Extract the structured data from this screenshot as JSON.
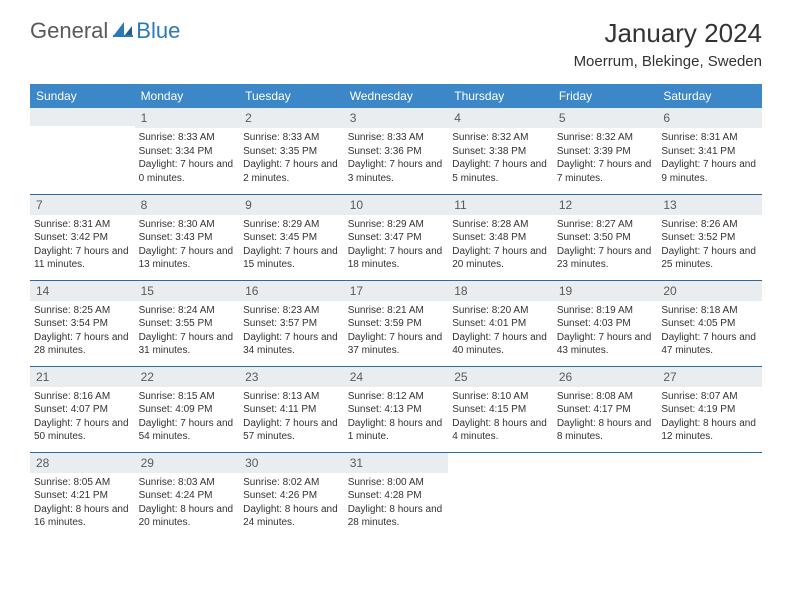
{
  "logo": {
    "general": "General",
    "blue": "Blue"
  },
  "title": "January 2024",
  "location": "Moerrum, Blekinge, Sweden",
  "colors": {
    "header_bg": "#3b87c8",
    "header_fg": "#ffffff",
    "daynum_bg": "#e9edf0",
    "row_border": "#2a6aa5",
    "logo_blue": "#2a7ab8",
    "logo_gray": "#5a5a5a"
  },
  "dayHeaders": [
    "Sunday",
    "Monday",
    "Tuesday",
    "Wednesday",
    "Thursday",
    "Friday",
    "Saturday"
  ],
  "weeks": [
    [
      null,
      {
        "n": "1",
        "sr": "Sunrise: 8:33 AM",
        "ss": "Sunset: 3:34 PM",
        "dl": "Daylight: 7 hours and 0 minutes."
      },
      {
        "n": "2",
        "sr": "Sunrise: 8:33 AM",
        "ss": "Sunset: 3:35 PM",
        "dl": "Daylight: 7 hours and 2 minutes."
      },
      {
        "n": "3",
        "sr": "Sunrise: 8:33 AM",
        "ss": "Sunset: 3:36 PM",
        "dl": "Daylight: 7 hours and 3 minutes."
      },
      {
        "n": "4",
        "sr": "Sunrise: 8:32 AM",
        "ss": "Sunset: 3:38 PM",
        "dl": "Daylight: 7 hours and 5 minutes."
      },
      {
        "n": "5",
        "sr": "Sunrise: 8:32 AM",
        "ss": "Sunset: 3:39 PM",
        "dl": "Daylight: 7 hours and 7 minutes."
      },
      {
        "n": "6",
        "sr": "Sunrise: 8:31 AM",
        "ss": "Sunset: 3:41 PM",
        "dl": "Daylight: 7 hours and 9 minutes."
      }
    ],
    [
      {
        "n": "7",
        "sr": "Sunrise: 8:31 AM",
        "ss": "Sunset: 3:42 PM",
        "dl": "Daylight: 7 hours and 11 minutes."
      },
      {
        "n": "8",
        "sr": "Sunrise: 8:30 AM",
        "ss": "Sunset: 3:43 PM",
        "dl": "Daylight: 7 hours and 13 minutes."
      },
      {
        "n": "9",
        "sr": "Sunrise: 8:29 AM",
        "ss": "Sunset: 3:45 PM",
        "dl": "Daylight: 7 hours and 15 minutes."
      },
      {
        "n": "10",
        "sr": "Sunrise: 8:29 AM",
        "ss": "Sunset: 3:47 PM",
        "dl": "Daylight: 7 hours and 18 minutes."
      },
      {
        "n": "11",
        "sr": "Sunrise: 8:28 AM",
        "ss": "Sunset: 3:48 PM",
        "dl": "Daylight: 7 hours and 20 minutes."
      },
      {
        "n": "12",
        "sr": "Sunrise: 8:27 AM",
        "ss": "Sunset: 3:50 PM",
        "dl": "Daylight: 7 hours and 23 minutes."
      },
      {
        "n": "13",
        "sr": "Sunrise: 8:26 AM",
        "ss": "Sunset: 3:52 PM",
        "dl": "Daylight: 7 hours and 25 minutes."
      }
    ],
    [
      {
        "n": "14",
        "sr": "Sunrise: 8:25 AM",
        "ss": "Sunset: 3:54 PM",
        "dl": "Daylight: 7 hours and 28 minutes."
      },
      {
        "n": "15",
        "sr": "Sunrise: 8:24 AM",
        "ss": "Sunset: 3:55 PM",
        "dl": "Daylight: 7 hours and 31 minutes."
      },
      {
        "n": "16",
        "sr": "Sunrise: 8:23 AM",
        "ss": "Sunset: 3:57 PM",
        "dl": "Daylight: 7 hours and 34 minutes."
      },
      {
        "n": "17",
        "sr": "Sunrise: 8:21 AM",
        "ss": "Sunset: 3:59 PM",
        "dl": "Daylight: 7 hours and 37 minutes."
      },
      {
        "n": "18",
        "sr": "Sunrise: 8:20 AM",
        "ss": "Sunset: 4:01 PM",
        "dl": "Daylight: 7 hours and 40 minutes."
      },
      {
        "n": "19",
        "sr": "Sunrise: 8:19 AM",
        "ss": "Sunset: 4:03 PM",
        "dl": "Daylight: 7 hours and 43 minutes."
      },
      {
        "n": "20",
        "sr": "Sunrise: 8:18 AM",
        "ss": "Sunset: 4:05 PM",
        "dl": "Daylight: 7 hours and 47 minutes."
      }
    ],
    [
      {
        "n": "21",
        "sr": "Sunrise: 8:16 AM",
        "ss": "Sunset: 4:07 PM",
        "dl": "Daylight: 7 hours and 50 minutes."
      },
      {
        "n": "22",
        "sr": "Sunrise: 8:15 AM",
        "ss": "Sunset: 4:09 PM",
        "dl": "Daylight: 7 hours and 54 minutes."
      },
      {
        "n": "23",
        "sr": "Sunrise: 8:13 AM",
        "ss": "Sunset: 4:11 PM",
        "dl": "Daylight: 7 hours and 57 minutes."
      },
      {
        "n": "24",
        "sr": "Sunrise: 8:12 AM",
        "ss": "Sunset: 4:13 PM",
        "dl": "Daylight: 8 hours and 1 minute."
      },
      {
        "n": "25",
        "sr": "Sunrise: 8:10 AM",
        "ss": "Sunset: 4:15 PM",
        "dl": "Daylight: 8 hours and 4 minutes."
      },
      {
        "n": "26",
        "sr": "Sunrise: 8:08 AM",
        "ss": "Sunset: 4:17 PM",
        "dl": "Daylight: 8 hours and 8 minutes."
      },
      {
        "n": "27",
        "sr": "Sunrise: 8:07 AM",
        "ss": "Sunset: 4:19 PM",
        "dl": "Daylight: 8 hours and 12 minutes."
      }
    ],
    [
      {
        "n": "28",
        "sr": "Sunrise: 8:05 AM",
        "ss": "Sunset: 4:21 PM",
        "dl": "Daylight: 8 hours and 16 minutes."
      },
      {
        "n": "29",
        "sr": "Sunrise: 8:03 AM",
        "ss": "Sunset: 4:24 PM",
        "dl": "Daylight: 8 hours and 20 minutes."
      },
      {
        "n": "30",
        "sr": "Sunrise: 8:02 AM",
        "ss": "Sunset: 4:26 PM",
        "dl": "Daylight: 8 hours and 24 minutes."
      },
      {
        "n": "31",
        "sr": "Sunrise: 8:00 AM",
        "ss": "Sunset: 4:28 PM",
        "dl": "Daylight: 8 hours and 28 minutes."
      },
      null,
      null,
      null
    ]
  ]
}
